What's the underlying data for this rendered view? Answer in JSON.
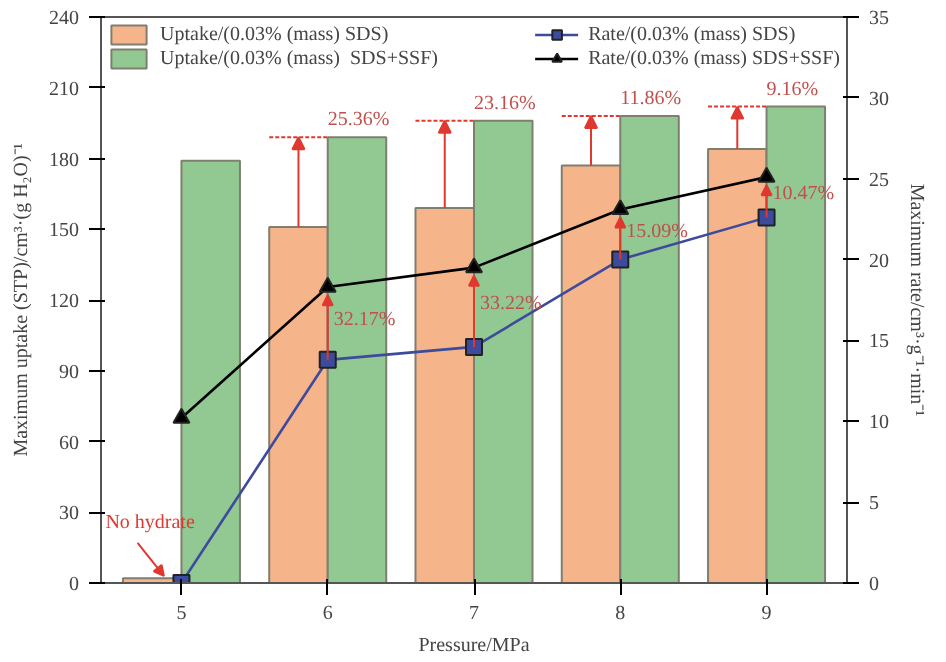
{
  "chart_data": {
    "type": "bar",
    "xlabel": "Pressure/MPa",
    "ylabel": "Maximum uptake (STP)/cm³·(g H₂O)⁻¹",
    "y2label": "Maximum rate/cm³·g⁻¹·min⁻¹",
    "categories": [
      "5",
      "6",
      "7",
      "8",
      "9"
    ],
    "series": [
      {
        "name": "Uptake/(0.03% (mass) SDS)",
        "color": "#f6b48a",
        "values": [
          2,
          151,
          159,
          177,
          184
        ]
      },
      {
        "name": "Uptake/(0.03% (mass)  SDS+SSF)",
        "color": "#92c992",
        "values": [
          179,
          189,
          196,
          198,
          202
        ]
      },
      {
        "name": "Rate/(0.03% (mass) SDS)",
        "type": "line",
        "axis": "y2",
        "marker": "square",
        "color": "#3d4b9c",
        "values": [
          0,
          13.8,
          14.6,
          20.0,
          22.6
        ]
      },
      {
        "name": "Rate/(0.03% (mass) SDS+SSF)",
        "type": "line",
        "axis": "y2",
        "marker": "triangle",
        "color": "#000000",
        "values": [
          10.2,
          18.3,
          19.5,
          23.1,
          25.1
        ]
      }
    ],
    "ylim": [
      0,
      240
    ],
    "yticks": [
      0,
      30,
      60,
      90,
      120,
      150,
      180,
      210,
      240
    ],
    "y2lim": [
      0,
      35
    ],
    "y2ticks": [
      0,
      5,
      10,
      15,
      20,
      25,
      30,
      35
    ],
    "legend": "top",
    "grid": false,
    "annotations": [
      {
        "text": "No hydrate",
        "x": "5",
        "y": 2
      },
      "25.36%",
      "23.16%",
      "11.86%",
      "9.16%",
      "32.17%",
      "33.22%",
      "15.09%",
      "10.47%"
    ]
  }
}
